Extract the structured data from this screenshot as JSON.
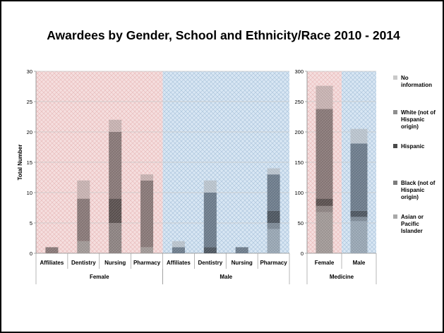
{
  "title": "Awardees by Gender, School and Ethnicity/Race 2010 - 2014",
  "colors": {
    "female_bg": "#f5dede",
    "male_bg": "#d8e6f3",
    "female_series": [
      "#a39b99",
      "#8f8584",
      "#5c5251",
      "#8a7a79",
      "#c9b4b3"
    ],
    "male_series": [
      "#9aa8b5",
      "#7f8c99",
      "#4f5862",
      "#6f7e8e",
      "#bcc6d0"
    ]
  },
  "chart_data": [
    {
      "type": "bar",
      "stacked": true,
      "ylabel": "Total Number",
      "ylim": [
        0,
        30
      ],
      "yticks": [
        0,
        5,
        10,
        15,
        20,
        25,
        30
      ],
      "groups": [
        {
          "name": "Female",
          "categories": [
            "Affiliates",
            "Dentistry",
            "Nursing",
            "Pharmacy"
          ]
        },
        {
          "name": "Male",
          "categories": [
            "Affiliates",
            "Dentistry",
            "Nursing",
            "Pharmacy"
          ]
        }
      ],
      "series": [
        {
          "name": "Asian or Pacific Islander",
          "values": [
            0,
            2,
            0,
            1,
            0,
            0,
            0,
            4
          ]
        },
        {
          "name": "Black (not of Hispanic origin)",
          "values": [
            0,
            0,
            5,
            0,
            0,
            0,
            0,
            1
          ]
        },
        {
          "name": "Hispanic",
          "values": [
            0,
            0,
            4,
            0,
            0,
            1,
            0,
            2
          ]
        },
        {
          "name": "White (not of Hispanic origin)",
          "values": [
            1,
            7,
            11,
            11,
            1,
            9,
            1,
            6
          ]
        },
        {
          "name": "No information",
          "values": [
            0,
            3,
            2,
            1,
            1,
            2,
            0,
            1
          ]
        }
      ],
      "grid": true
    },
    {
      "type": "bar",
      "stacked": true,
      "ylim": [
        0,
        300
      ],
      "yticks": [
        0,
        50,
        100,
        150,
        200,
        250,
        300
      ],
      "groups": [
        {
          "name": "Medicine",
          "categories": [
            "Female",
            "Male"
          ]
        }
      ],
      "series": [
        {
          "name": "Asian or Pacific Islander",
          "values": [
            68,
            53
          ]
        },
        {
          "name": "Black (not of Hispanic origin)",
          "values": [
            10,
            7
          ]
        },
        {
          "name": "Hispanic",
          "values": [
            12,
            10
          ]
        },
        {
          "name": "White (not of Hispanic origin)",
          "values": [
            148,
            111
          ]
        },
        {
          "name": "No information",
          "values": [
            38,
            24
          ]
        }
      ],
      "grid": true
    }
  ],
  "legend": {
    "placement": "right",
    "items": [
      {
        "lines": [
          "No",
          "information"
        ],
        "color": "#c9c9c9"
      },
      {
        "lines": [
          "White (not of",
          "Hispanic",
          "origin)"
        ],
        "color": "#8e8e8e"
      },
      {
        "lines": [
          "Hispanic"
        ],
        "color": "#4a4a4a"
      },
      {
        "lines": [
          "Black (not of",
          "Hispanic",
          "origin)"
        ],
        "color": "#7c7c7c"
      },
      {
        "lines": [
          "Asian or",
          "Pacific",
          "Islander"
        ],
        "color": "#a8a8a8"
      }
    ]
  }
}
